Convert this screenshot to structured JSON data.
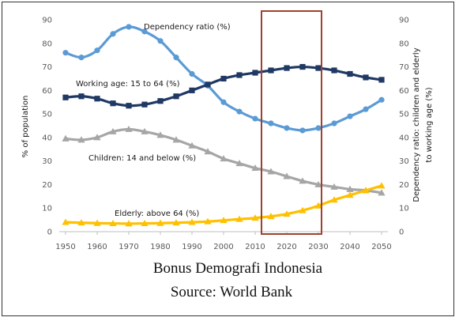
{
  "chart_data": {
    "type": "line",
    "x": [
      1950,
      1955,
      1960,
      1965,
      1970,
      1975,
      1980,
      1985,
      1990,
      1995,
      2000,
      2005,
      2010,
      2015,
      2020,
      2025,
      2030,
      2035,
      2040,
      2045,
      2050
    ],
    "xticks": [
      "1950",
      "1960",
      "1970",
      "1980",
      "1990",
      "2000",
      "2010",
      "2020",
      "2030",
      "2040",
      "2050"
    ],
    "xlim": [
      1950,
      2050
    ],
    "ylim": [
      0,
      90
    ],
    "yticks": [
      "0",
      "10",
      "20",
      "30",
      "40",
      "50",
      "60",
      "70",
      "80",
      "90"
    ],
    "ylabel_left": "% of population",
    "ylabel_right_line1": "Dependency ratio: children and elderly",
    "ylabel_right_line2": "to working age (%)",
    "series": [
      {
        "name": "Dependency ratio (%)",
        "color": "#5b9bd5",
        "marker": "circle",
        "values": [
          76,
          74,
          77,
          84,
          87,
          85,
          81,
          74,
          67,
          62,
          55,
          51,
          48,
          46,
          44,
          43,
          44,
          46,
          49,
          52,
          56
        ]
      },
      {
        "name": "Working age: 15 to 64 (%)",
        "color": "#1f3864",
        "marker": "square",
        "values": [
          57,
          57.5,
          56.5,
          54.5,
          53.5,
          54,
          55.5,
          57.5,
          60,
          62.5,
          65,
          66.5,
          67.5,
          68.5,
          69.5,
          70,
          69.5,
          68.5,
          67,
          65.5,
          64.5
        ]
      },
      {
        "name": "Children: 14 and below (%)",
        "color": "#a6a6a6",
        "marker": "triangle",
        "values": [
          39.5,
          39,
          40,
          42.5,
          43.5,
          42.5,
          41,
          39,
          36.5,
          34,
          31,
          29,
          27,
          25.5,
          23.5,
          21.5,
          20,
          19,
          18,
          17.5,
          16.5
        ]
      },
      {
        "name": "Elderly: above 64 (%)",
        "color": "#ffc000",
        "marker": "triangle",
        "values": [
          4,
          3.8,
          3.6,
          3.5,
          3.4,
          3.5,
          3.6,
          3.8,
          4,
          4.3,
          4.8,
          5.3,
          5.8,
          6.5,
          7.5,
          9,
          11,
          13.5,
          15.5,
          17.5,
          19.5
        ]
      }
    ],
    "annotations": {
      "dependency": "Dependency ratio (%)",
      "working": "Working age: 15 to 64 (%)",
      "children": "Children: 14 and below (%)",
      "elderly": "Elderly: above 64 (%)"
    },
    "highlight": {
      "from": 2012,
      "to": 2031,
      "color": "#a0412d"
    },
    "caption_line1": "Bonus Demografi  Indonesia",
    "caption_line2": "Source: World Bank"
  }
}
